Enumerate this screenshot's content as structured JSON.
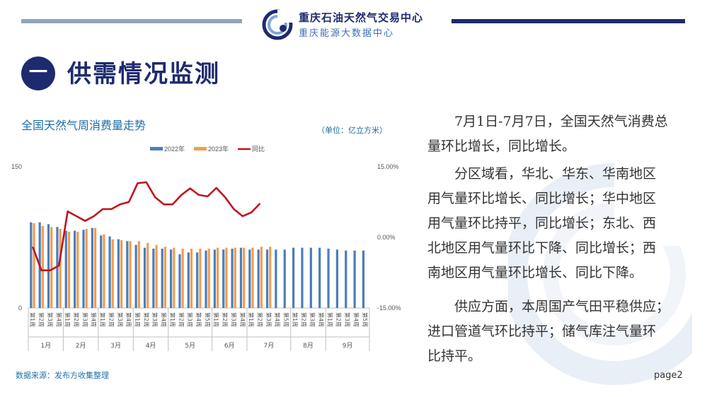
{
  "header": {
    "org_name": "重庆石油天然气交易中心",
    "org_subname": "重庆能源大数据中心"
  },
  "section": {
    "number": "一",
    "title": "供需情况监测"
  },
  "chart_header": {
    "title": "全国天然气周消费量走势",
    "unit": "（单位：亿立方米）"
  },
  "source": "数据来源：发布方收集整理",
  "page_label": "page2",
  "text_blocks": [
    [
      "7月1日-7月7日，全国天然气消费总",
      "量环比增长，同比增长。"
    ],
    [
      "分区域看，华北、华东、华南地区",
      "用气量环比增长、同比增长；华中地区",
      "用气量环比持平，同比增长；东北、西",
      "北地区用气量环比下降、同比增长；西",
      "南地区用气量环比增长、同比下降。"
    ],
    [
      "供应方面，本周国产气田平稳供应；",
      "进口管道气环比持平；储气库注气量环",
      "比持平。"
    ]
  ],
  "colors": {
    "navy": "#1e2a6e",
    "bar_2022": "#4a7ebb",
    "bar_2023": "#f59b50",
    "line_yoy": "#c0141e",
    "accent_blue": "#1f6fa8"
  },
  "chart_data": {
    "type": "bar",
    "legend_position": "top",
    "y_left": {
      "range": [
        0,
        150
      ],
      "ticks": [
        "0",
        "150"
      ]
    },
    "y_right": {
      "range": [
        -0.15,
        0.15
      ],
      "ticks": [
        "-15.00%",
        "0.00%",
        "15.00%"
      ]
    },
    "week_labels": [
      "第1周",
      "第2周",
      "第3周",
      "第4周",
      "第1周",
      "第2周",
      "第3周",
      "第4周",
      "第1周",
      "第2周",
      "第3周",
      "第4周",
      "第1周",
      "第2周",
      "第3周",
      "第4周",
      "第1周",
      "第2周",
      "第3周",
      "第4周",
      "第5周",
      "第1周",
      "第2周",
      "第3周",
      "第4周",
      "第1周",
      "第2周",
      "第3周",
      "第4周",
      "第5周",
      "第1周",
      "第2周",
      "第3周",
      "第4周",
      "第1周",
      "第2周",
      "第3周",
      "第4周",
      "第5周"
    ],
    "months": [
      {
        "label": "1月",
        "weeks": 4
      },
      {
        "label": "2月",
        "weeks": 4
      },
      {
        "label": "3月",
        "weeks": 4
      },
      {
        "label": "4月",
        "weeks": 4
      },
      {
        "label": "5月",
        "weeks": 5
      },
      {
        "label": "6月",
        "weeks": 4
      },
      {
        "label": "7月",
        "weeks": 5
      },
      {
        "label": "8月",
        "weeks": 4
      },
      {
        "label": "9月",
        "weeks": 5
      }
    ],
    "series": [
      {
        "name": "2022年",
        "kind": "bar",
        "values": [
          91,
          91,
          89,
          86,
          82,
          82,
          83,
          85,
          77,
          76,
          73,
          71,
          67,
          64,
          63,
          63,
          62,
          57,
          59,
          59,
          61,
          62,
          62,
          63,
          64,
          62,
          62,
          62,
          62,
          62,
          64,
          64,
          64,
          64,
          63,
          62,
          61,
          61,
          61
        ]
      },
      {
        "name": "2023年",
        "kind": "bar",
        "values": [
          90,
          87,
          86,
          84,
          81,
          81,
          84,
          85,
          78,
          73,
          72,
          71,
          71,
          69,
          67,
          65,
          64,
          63,
          63,
          63,
          63,
          64,
          64,
          64,
          64,
          64,
          65,
          65,
          null,
          null,
          null,
          null,
          null,
          null,
          null,
          null,
          null,
          null,
          null
        ]
      },
      {
        "name": "同比",
        "kind": "line",
        "axis": "right",
        "values": [
          -0.02,
          -0.07,
          -0.07,
          -0.06,
          0.055,
          0.045,
          0.035,
          0.045,
          0.06,
          0.06,
          0.07,
          0.075,
          0.115,
          0.117,
          0.085,
          0.07,
          0.07,
          0.09,
          0.104,
          0.09,
          0.087,
          0.105,
          0.085,
          0.06,
          0.045,
          0.053,
          0.072,
          null,
          null,
          null,
          null,
          null,
          null,
          null,
          null,
          null,
          null,
          null,
          null
        ]
      }
    ]
  }
}
